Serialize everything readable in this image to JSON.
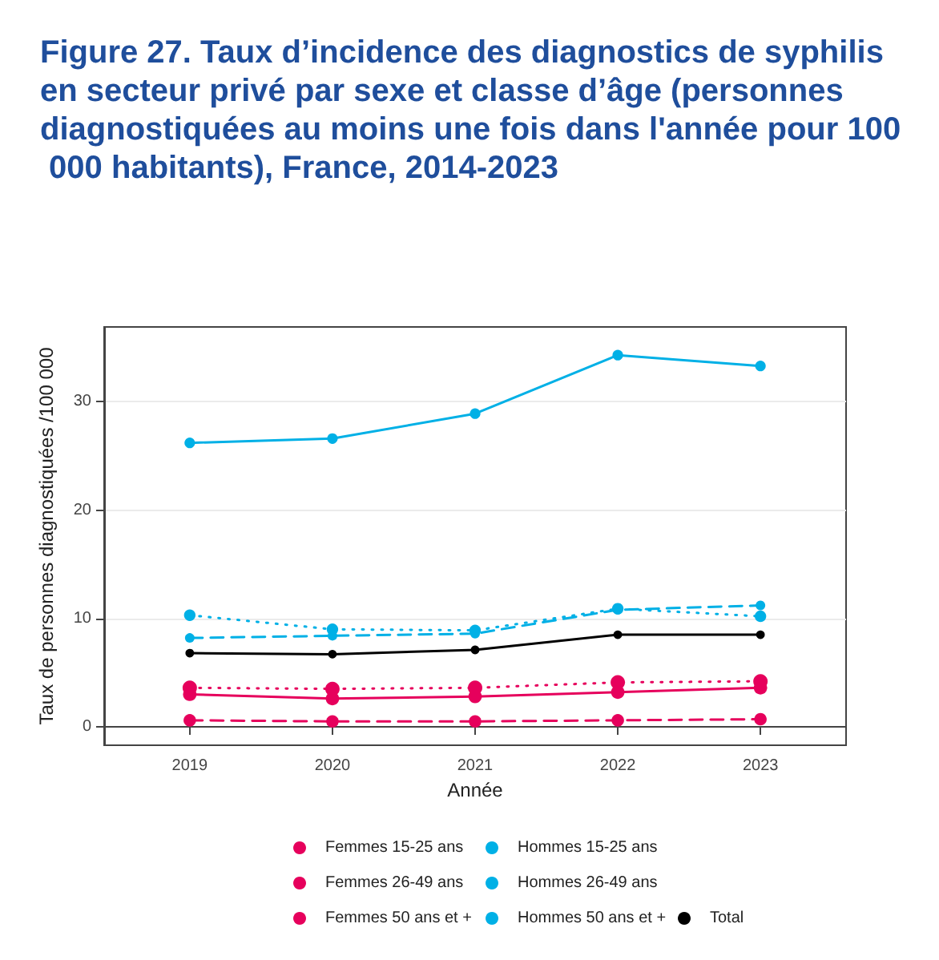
{
  "chart_data": {
    "type": "line",
    "title": "Figure 27. Taux d’incidence des diagnostics de syphilis en secteur privé par sexe et classe d’âge (personnes diagnostiquées au moins une fois dans l'année pour 100 000 habitants), France, 2014-2023",
    "xlabel": "Année",
    "ylabel": "Taux de personnes diagnostiquées /100 000",
    "x": [
      2019,
      2020,
      2021,
      2022,
      2023
    ],
    "xlim": [
      2018.4,
      2023.6
    ],
    "xticks": [
      2019,
      2020,
      2021,
      2022,
      2023
    ],
    "ylim": [
      -1.7,
      36.9
    ],
    "yticks": [
      0,
      10,
      20,
      30
    ],
    "grid": "y",
    "legend": "bottom",
    "marker": "circle",
    "series": [
      {
        "name": "Femmes 15-25 ans",
        "color": "#e6005c",
        "line_style": "dotted",
        "values": [
          3.6,
          3.5,
          3.6,
          4.1,
          4.2
        ]
      },
      {
        "name": "Femmes 26-49 ans",
        "color": "#e6005c",
        "line_style": "solid",
        "values": [
          3.0,
          2.6,
          2.8,
          3.2,
          3.6
        ]
      },
      {
        "name": "Femmes 50 ans et +",
        "color": "#e6005c",
        "line_style": "dashed",
        "values": [
          0.6,
          0.5,
          0.5,
          0.6,
          0.7
        ]
      },
      {
        "name": "Hommes 15-25 ans",
        "color": "#00b0e6",
        "line_style": "dotted",
        "values": [
          10.3,
          9.0,
          8.9,
          10.9,
          10.2
        ]
      },
      {
        "name": "Hommes 26-49 ans",
        "color": "#00b0e6",
        "line_style": "solid",
        "values": [
          26.2,
          26.6,
          28.9,
          34.3,
          33.3
        ]
      },
      {
        "name": "Hommes 50 ans et +",
        "color": "#00b0e6",
        "line_style": "dashed",
        "values": [
          8.2,
          8.4,
          8.6,
          10.8,
          11.2
        ]
      },
      {
        "name": "Total",
        "color": "#000000",
        "line_style": "solid",
        "values": [
          6.8,
          6.7,
          7.1,
          8.5,
          8.5
        ]
      }
    ]
  }
}
